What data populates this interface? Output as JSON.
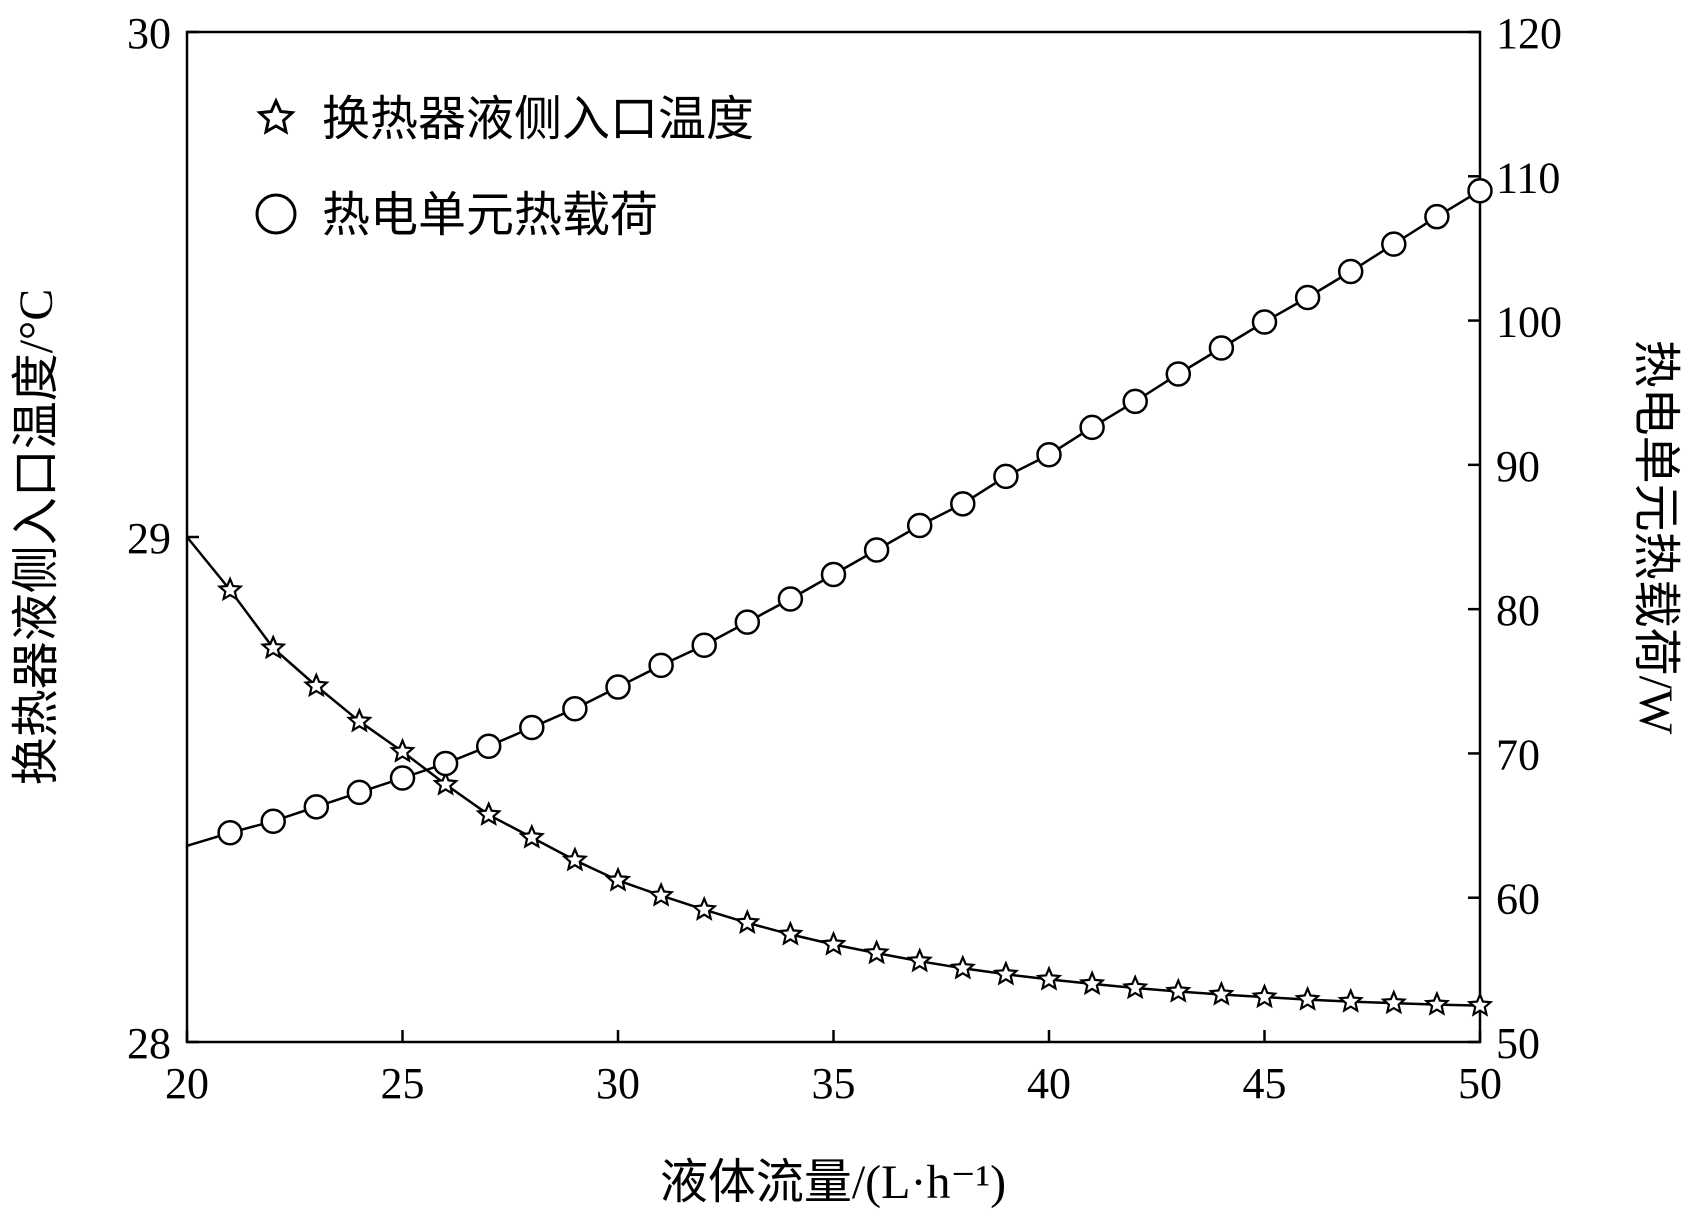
{
  "chart_data": {
    "type": "scatter",
    "title": "",
    "xlabel": "液体流量/(L·h⁻¹)",
    "ylabel_left": "换热器液侧入口温度/°C",
    "ylabel_right": "热电单元热载荷/W",
    "xlim": [
      20,
      50
    ],
    "ylim_left": [
      28,
      30
    ],
    "ylim_right": [
      50,
      120
    ],
    "x_ticks": [
      20,
      25,
      30,
      35,
      40,
      45,
      50
    ],
    "y_ticks_left": [
      28,
      29,
      30
    ],
    "y_ticks_right": [
      50,
      60,
      70,
      80,
      90,
      100,
      110,
      120
    ],
    "grid": false,
    "legend_position": "top-left",
    "series": [
      {
        "name": "换热器液侧入口温度",
        "axis": "left",
        "marker": "star",
        "color": "#000000",
        "line_x": [
          20,
          21,
          22,
          23,
          24,
          25,
          26,
          27,
          28,
          29,
          30,
          31,
          32,
          33,
          34,
          35,
          36,
          37,
          38,
          39,
          40,
          41,
          42,
          43,
          44,
          45,
          46,
          47,
          48,
          49,
          50
        ],
        "line_y": [
          29.0,
          28.895,
          28.78,
          28.705,
          28.635,
          28.575,
          28.51,
          28.45,
          28.405,
          28.36,
          28.32,
          28.29,
          28.262,
          28.236,
          28.213,
          28.193,
          28.176,
          28.16,
          28.146,
          28.134,
          28.124,
          28.115,
          28.107,
          28.1,
          28.094,
          28.089,
          28.084,
          28.08,
          28.077,
          28.074,
          28.072
        ],
        "x": [
          21,
          22,
          23,
          24,
          25,
          26,
          27,
          28,
          29,
          30,
          31,
          32,
          33,
          34,
          35,
          36,
          37,
          38,
          39,
          40,
          41,
          42,
          43,
          44,
          45,
          46,
          47,
          48,
          49,
          50
        ],
        "y": [
          28.895,
          28.78,
          28.705,
          28.635,
          28.575,
          28.51,
          28.45,
          28.405,
          28.36,
          28.32,
          28.29,
          28.262,
          28.236,
          28.213,
          28.193,
          28.176,
          28.16,
          28.146,
          28.134,
          28.124,
          28.115,
          28.107,
          28.1,
          28.094,
          28.089,
          28.084,
          28.08,
          28.077,
          28.074,
          28.072
        ]
      },
      {
        "name": "热电单元热载荷",
        "axis": "right",
        "marker": "circle",
        "color": "#000000",
        "line_x": [
          20,
          21,
          22,
          23,
          24,
          25,
          26,
          27,
          28,
          29,
          30,
          31,
          32,
          33,
          34,
          35,
          36,
          37,
          38,
          39,
          40,
          41,
          42,
          43,
          44,
          45,
          46,
          47,
          48,
          49,
          50
        ],
        "line_y": [
          63.6,
          64.5,
          65.3,
          66.3,
          67.3,
          68.3,
          69.3,
          70.5,
          71.8,
          73.1,
          74.6,
          76.1,
          77.5,
          79.1,
          80.7,
          82.4,
          84.1,
          85.8,
          87.3,
          89.2,
          90.7,
          92.6,
          94.4,
          96.3,
          98.1,
          99.9,
          101.6,
          103.4,
          105.3,
          107.2,
          109.0
        ],
        "x": [
          21,
          22,
          23,
          24,
          25,
          26,
          27,
          28,
          29,
          30,
          31,
          32,
          33,
          34,
          35,
          36,
          37,
          38,
          39,
          40,
          41,
          42,
          43,
          44,
          45,
          46,
          47,
          48,
          49,
          50
        ],
        "y": [
          64.5,
          65.3,
          66.3,
          67.3,
          68.3,
          69.3,
          70.5,
          71.8,
          73.1,
          74.6,
          76.1,
          77.5,
          79.1,
          80.7,
          82.4,
          84.1,
          85.8,
          87.3,
          89.2,
          90.7,
          92.6,
          94.4,
          96.3,
          98.1,
          99.9,
          101.6,
          103.4,
          105.3,
          107.2,
          109.0
        ]
      }
    ]
  }
}
